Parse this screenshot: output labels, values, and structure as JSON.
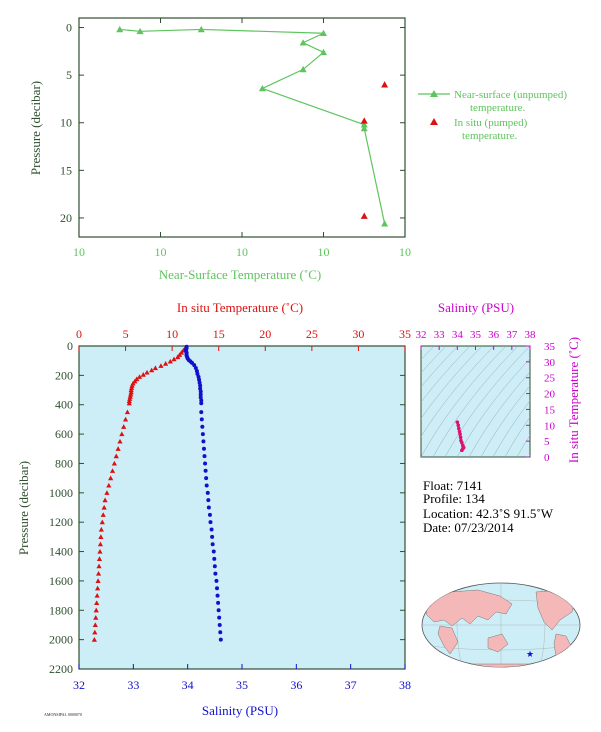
{
  "colors": {
    "nst": "#5ec45e",
    "insitu": "#dd1111",
    "salinity": "#1111cc",
    "salinity_label": "#cc00cc",
    "axis_dark": "#2f4f2f",
    "panel_bg": "#cdeef7",
    "land": "#f4b8b8",
    "ocean": "#cdeef7"
  },
  "info": {
    "float": "Float:  7141",
    "profile": "Profile:  134",
    "location": "Location:  42.3˚S  91.5˚W",
    "date": "Date:  07/23/2014"
  },
  "footer_stamp": "AMONSIPAL 0000070",
  "chart_data": [
    {
      "type": "line",
      "id": "near-surface",
      "xlabel": "Near-Surface Temperature (˚C)",
      "ylabel": "Pressure (decibar)",
      "xlim": [
        10,
        10.4
      ],
      "x_ticks": [
        10,
        10.1,
        10.2,
        10.3,
        10.4
      ],
      "x_tick_labels": [
        "10",
        "10",
        "10",
        "10",
        "10"
      ],
      "ylim": [
        22,
        -1
      ],
      "y_ticks": [
        0,
        5,
        10,
        15,
        20
      ],
      "legend": "right",
      "series": [
        {
          "name": "Near-surface (unpumped) temperature.",
          "marker": "triangle-line",
          "points": [
            [
              10.05,
              0.2
            ],
            [
              10.075,
              0.4
            ],
            [
              10.15,
              0.2
            ],
            [
              10.3,
              0.6
            ],
            [
              10.275,
              1.6
            ],
            [
              10.3,
              2.6
            ],
            [
              10.275,
              4.4
            ],
            [
              10.225,
              6.4
            ],
            [
              10.35,
              10.2
            ],
            [
              10.35,
              10.6
            ],
            [
              10.375,
              20.6
            ]
          ]
        },
        {
          "name": "In situ (pumped) temperature.",
          "marker": "triangle",
          "points": [
            [
              10.375,
              6.0
            ],
            [
              10.35,
              9.8
            ],
            [
              10.35,
              19.8
            ]
          ]
        }
      ]
    },
    {
      "type": "scatter",
      "id": "profile",
      "ylabel": "Pressure (decibar)",
      "ylim": [
        2200,
        0
      ],
      "y_ticks": [
        0,
        200,
        400,
        600,
        800,
        1000,
        1200,
        1400,
        1600,
        1800,
        2000,
        2200
      ],
      "top_axis": {
        "label": "In situ Temperature (˚C)",
        "range": [
          0,
          35
        ],
        "ticks": [
          0,
          5,
          10,
          15,
          20,
          25,
          30,
          35
        ]
      },
      "bottom_axis": {
        "label": "Salinity (PSU)",
        "range": [
          32,
          38
        ],
        "ticks": [
          32,
          33,
          34,
          35,
          36,
          37,
          38
        ]
      },
      "series": [
        {
          "axis": "top",
          "marker": "triangle",
          "points": [
            [
              11.4,
              15
            ],
            [
              11.2,
              30
            ],
            [
              11.0,
              45
            ],
            [
              10.8,
              60
            ],
            [
              10.6,
              75
            ],
            [
              10.2,
              90
            ],
            [
              9.8,
              105
            ],
            [
              9.3,
              120
            ],
            [
              8.8,
              135
            ],
            [
              8.2,
              150
            ],
            [
              7.8,
              165
            ],
            [
              7.3,
              180
            ],
            [
              6.9,
              195
            ],
            [
              6.5,
              210
            ],
            [
              6.2,
              225
            ],
            [
              6.0,
              240
            ],
            [
              5.8,
              255
            ],
            [
              5.7,
              270
            ],
            [
              5.65,
              285
            ],
            [
              5.6,
              300
            ],
            [
              5.6,
              315
            ],
            [
              5.55,
              330
            ],
            [
              5.5,
              345
            ],
            [
              5.45,
              360
            ],
            [
              5.4,
              375
            ],
            [
              5.4,
              390
            ],
            [
              5.2,
              450
            ],
            [
              5.0,
              500
            ],
            [
              4.8,
              550
            ],
            [
              4.6,
              600
            ],
            [
              4.4,
              650
            ],
            [
              4.2,
              700
            ],
            [
              4.0,
              750
            ],
            [
              3.8,
              800
            ],
            [
              3.6,
              850
            ],
            [
              3.4,
              900
            ],
            [
              3.2,
              950
            ],
            [
              3.0,
              1000
            ],
            [
              2.8,
              1050
            ],
            [
              2.7,
              1100
            ],
            [
              2.6,
              1150
            ],
            [
              2.5,
              1200
            ],
            [
              2.4,
              1250
            ],
            [
              2.35,
              1300
            ],
            [
              2.3,
              1350
            ],
            [
              2.25,
              1400
            ],
            [
              2.2,
              1450
            ],
            [
              2.15,
              1500
            ],
            [
              2.1,
              1550
            ],
            [
              2.05,
              1600
            ],
            [
              2.0,
              1650
            ],
            [
              1.95,
              1700
            ],
            [
              1.9,
              1750
            ],
            [
              1.85,
              1800
            ],
            [
              1.8,
              1850
            ],
            [
              1.75,
              1900
            ],
            [
              1.7,
              1950
            ],
            [
              1.65,
              2000
            ]
          ]
        },
        {
          "axis": "bottom",
          "marker": "circle",
          "points": [
            [
              33.98,
              5
            ],
            [
              33.98,
              15
            ],
            [
              33.97,
              25
            ],
            [
              33.97,
              35
            ],
            [
              33.98,
              45
            ],
            [
              33.98,
              55
            ],
            [
              33.98,
              65
            ],
            [
              33.99,
              75
            ],
            [
              34.0,
              85
            ],
            [
              34.02,
              95
            ],
            [
              34.05,
              105
            ],
            [
              34.08,
              115
            ],
            [
              34.12,
              130
            ],
            [
              34.15,
              150
            ],
            [
              34.17,
              170
            ],
            [
              34.18,
              190
            ],
            [
              34.2,
              210
            ],
            [
              34.21,
              230
            ],
            [
              34.22,
              250
            ],
            [
              34.23,
              270
            ],
            [
              34.23,
              290
            ],
            [
              34.24,
              310
            ],
            [
              34.24,
              330
            ],
            [
              34.24,
              350
            ],
            [
              34.25,
              370
            ],
            [
              34.25,
              390
            ],
            [
              34.25,
              450
            ],
            [
              34.26,
              500
            ],
            [
              34.27,
              550
            ],
            [
              34.28,
              600
            ],
            [
              34.29,
              650
            ],
            [
              34.3,
              700
            ],
            [
              34.31,
              750
            ],
            [
              34.32,
              800
            ],
            [
              34.33,
              850
            ],
            [
              34.34,
              900
            ],
            [
              34.35,
              950
            ],
            [
              34.37,
              1000
            ],
            [
              34.38,
              1050
            ],
            [
              34.39,
              1100
            ],
            [
              34.41,
              1150
            ],
            [
              34.42,
              1200
            ],
            [
              34.44,
              1250
            ],
            [
              34.45,
              1300
            ],
            [
              34.46,
              1350
            ],
            [
              34.48,
              1400
            ],
            [
              34.49,
              1450
            ],
            [
              34.5,
              1500
            ],
            [
              34.51,
              1550
            ],
            [
              34.53,
              1600
            ],
            [
              34.54,
              1650
            ],
            [
              34.55,
              1700
            ],
            [
              34.56,
              1750
            ],
            [
              34.57,
              1800
            ],
            [
              34.58,
              1850
            ],
            [
              34.59,
              1900
            ],
            [
              34.6,
              1950
            ],
            [
              34.61,
              2000
            ]
          ]
        }
      ]
    },
    {
      "type": "scatter",
      "id": "ts-diagram",
      "xlabel": "Salinity (PSU)",
      "ylabel": "In situ Temperature (˚C)",
      "xlim": [
        32,
        38
      ],
      "x_ticks": [
        32,
        33,
        34,
        35,
        36,
        37,
        38
      ],
      "ylim": [
        0,
        35
      ],
      "y_ticks": [
        0,
        5,
        10,
        15,
        20,
        25,
        30,
        35
      ],
      "series": [
        {
          "marker": "dot",
          "points": [
            [
              34.25,
              2.1
            ],
            [
              34.3,
              2.6
            ],
            [
              34.35,
              3.0
            ],
            [
              34.3,
              3.6
            ],
            [
              34.25,
              4.5
            ],
            [
              34.2,
              5.2
            ],
            [
              34.18,
              6.2
            ],
            [
              34.15,
              7.2
            ],
            [
              34.12,
              8.0
            ],
            [
              34.08,
              9.0
            ],
            [
              34.05,
              10.0
            ],
            [
              34.0,
              11.0
            ]
          ]
        }
      ]
    }
  ]
}
